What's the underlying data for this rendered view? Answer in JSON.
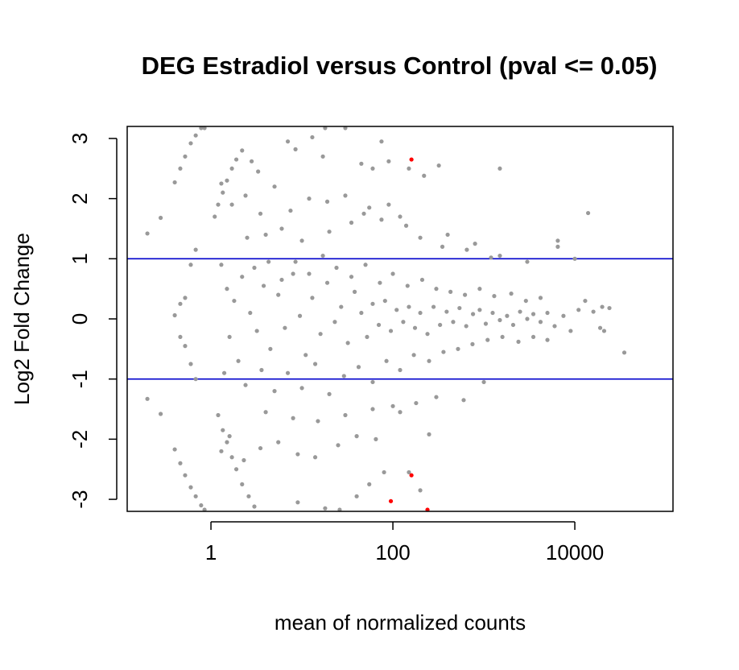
{
  "chart_data": {
    "type": "scatter",
    "title": "DEG Estradiol versus Control  (pval <= 0.05)",
    "xlabel": "mean of normalized counts",
    "ylabel": "Log2 Fold Change",
    "x_scale": "log10",
    "xlim": [
      0.12,
      120000
    ],
    "ylim": [
      -3.2,
      3.2
    ],
    "x_ticks": [
      {
        "value": 1,
        "label": "1"
      },
      {
        "value": 100,
        "label": "100"
      },
      {
        "value": 10000,
        "label": "10000"
      }
    ],
    "y_ticks": [
      {
        "value": 3,
        "label": "3"
      },
      {
        "value": 2,
        "label": "2"
      },
      {
        "value": 1,
        "label": "1"
      },
      {
        "value": 0,
        "label": "0"
      },
      {
        "value": -1,
        "label": "-1"
      },
      {
        "value": -2,
        "label": "-2"
      },
      {
        "value": -3,
        "label": "-3"
      }
    ],
    "reference_lines": [
      {
        "y": 1,
        "color": "#0000cc"
      },
      {
        "y": -1,
        "color": "#0000cc"
      }
    ],
    "grid": false,
    "colors": {
      "non_significant": "#999999",
      "significant": "#ff0000",
      "threshold_line": "#0000cc"
    },
    "series": [
      {
        "status": "not significant",
        "color": "#999999",
        "points": [
          [
            0.2,
            1.42
          ],
          [
            0.2,
            -1.33
          ],
          [
            0.28,
            1.68
          ],
          [
            0.28,
            -1.58
          ],
          [
            0.4,
            2.27
          ],
          [
            0.4,
            0.06
          ],
          [
            0.4,
            -2.17
          ],
          [
            0.46,
            2.5
          ],
          [
            0.46,
            0.25
          ],
          [
            0.46,
            -0.3
          ],
          [
            0.46,
            -2.4
          ],
          [
            0.52,
            2.7
          ],
          [
            0.52,
            0.35
          ],
          [
            0.52,
            -0.45
          ],
          [
            0.52,
            -2.6
          ],
          [
            0.6,
            2.92
          ],
          [
            0.6,
            0.9
          ],
          [
            0.6,
            -0.75
          ],
          [
            0.6,
            -2.8
          ],
          [
            0.68,
            3.05
          ],
          [
            0.68,
            1.15
          ],
          [
            0.68,
            -1.0
          ],
          [
            0.68,
            -2.95
          ],
          [
            0.78,
            3.18
          ],
          [
            0.78,
            -3.1
          ],
          [
            0.85,
            3.25
          ],
          [
            0.85,
            -3.2
          ],
          [
            1.1,
            1.7
          ],
          [
            1.2,
            1.9
          ],
          [
            1.35,
            2.1
          ],
          [
            1.5,
            2.3
          ],
          [
            1.7,
            2.5
          ],
          [
            1.9,
            2.65
          ],
          [
            2.2,
            2.8
          ],
          [
            1.2,
            -1.6
          ],
          [
            1.35,
            -1.85
          ],
          [
            1.5,
            -2.05
          ],
          [
            1.7,
            -2.3
          ],
          [
            1.9,
            -2.5
          ],
          [
            2.2,
            -2.75
          ],
          [
            2.6,
            -2.95
          ],
          [
            3.0,
            -3.12
          ],
          [
            2.8,
            2.62
          ],
          [
            3.3,
            2.45
          ],
          [
            7.0,
            2.95
          ],
          [
            8.5,
            2.82
          ],
          [
            13,
            3.02
          ],
          [
            17,
            2.7
          ],
          [
            18,
            3.2
          ],
          [
            30,
            3.25
          ],
          [
            45,
            2.58
          ],
          [
            60,
            2.5
          ],
          [
            75,
            2.95
          ],
          [
            90,
            2.62
          ],
          [
            150,
            2.5
          ],
          [
            220,
            2.38
          ],
          [
            320,
            2.55
          ],
          [
            1500,
            2.5
          ],
          [
            14000,
            1.76
          ],
          [
            6500,
            1.3
          ],
          [
            6500,
            1.2
          ],
          [
            10000,
            1.0
          ],
          [
            9,
            -3.05
          ],
          [
            18,
            -3.15
          ],
          [
            26,
            -3.2
          ],
          [
            40,
            -2.95
          ],
          [
            55,
            -2.75
          ],
          [
            80,
            -2.55
          ],
          [
            150,
            -2.55
          ],
          [
            200,
            -2.85
          ],
          [
            250,
            -1.92
          ],
          [
            120,
            -1.55
          ],
          [
            60,
            -1.5
          ],
          [
            30,
            -1.6
          ],
          [
            15,
            -1.7
          ],
          [
            8,
            -1.65
          ],
          [
            4,
            -1.55
          ],
          [
            2.5,
            1.35
          ],
          [
            4,
            1.4
          ],
          [
            6,
            1.5
          ],
          [
            10,
            1.3
          ],
          [
            20,
            1.45
          ],
          [
            35,
            1.6
          ],
          [
            55,
            1.85
          ],
          [
            90,
            1.9
          ],
          [
            140,
            1.55
          ],
          [
            400,
            1.4
          ],
          [
            800,
            1.25
          ],
          [
            1500,
            1.05
          ],
          [
            3000,
            0.95
          ],
          [
            1.3,
            0.9
          ],
          [
            1.5,
            0.5
          ],
          [
            1.8,
            0.3
          ],
          [
            2.2,
            0.7
          ],
          [
            2.7,
            0.1
          ],
          [
            3.2,
            -0.2
          ],
          [
            3.8,
            0.55
          ],
          [
            4.5,
            -0.5
          ],
          [
            5.5,
            0.4
          ],
          [
            6.5,
            -0.15
          ],
          [
            8,
            0.75
          ],
          [
            9.5,
            0.05
          ],
          [
            11,
            -0.6
          ],
          [
            13,
            0.35
          ],
          [
            16,
            -0.25
          ],
          [
            19,
            0.6
          ],
          [
            23,
            -0.05
          ],
          [
            27,
            0.2
          ],
          [
            32,
            -0.4
          ],
          [
            38,
            0.45
          ],
          [
            45,
            0.1
          ],
          [
            52,
            -0.3
          ],
          [
            60,
            0.25
          ],
          [
            70,
            -0.1
          ],
          [
            82,
            0.3
          ],
          [
            95,
            -0.2
          ],
          [
            110,
            0.15
          ],
          [
            130,
            -0.05
          ],
          [
            150,
            0.2
          ],
          [
            175,
            -0.15
          ],
          [
            200,
            0.1
          ],
          [
            240,
            -0.25
          ],
          [
            280,
            0.2
          ],
          [
            330,
            -0.1
          ],
          [
            390,
            0.12
          ],
          [
            460,
            -0.05
          ],
          [
            540,
            0.18
          ],
          [
            640,
            -0.12
          ],
          [
            760,
            0.08
          ],
          [
            900,
            0.15
          ],
          [
            1050,
            -0.08
          ],
          [
            1250,
            0.1
          ],
          [
            1500,
            -0.02
          ],
          [
            1800,
            0.05
          ],
          [
            2100,
            -0.1
          ],
          [
            2500,
            0.12
          ],
          [
            3000,
            0.0
          ],
          [
            3500,
            0.08
          ],
          [
            4200,
            -0.05
          ],
          [
            5000,
            0.1
          ],
          [
            6000,
            -0.12
          ],
          [
            7500,
            0.05
          ],
          [
            9000,
            -0.2
          ],
          [
            11000,
            0.15
          ],
          [
            13000,
            0.3
          ],
          [
            16000,
            0.12
          ],
          [
            20000,
            0.2
          ],
          [
            24000,
            0.18
          ],
          [
            35000,
            -0.56
          ],
          [
            19000,
            -0.15
          ],
          [
            21000,
            -0.2
          ],
          [
            1.4,
            -0.9
          ],
          [
            1.6,
            -0.3
          ],
          [
            2,
            -0.7
          ],
          [
            2.4,
            -1.1
          ],
          [
            3,
            0.85
          ],
          [
            3.6,
            -0.85
          ],
          [
            4.3,
            0.95
          ],
          [
            5,
            -1.2
          ],
          [
            6,
            0.65
          ],
          [
            7,
            -0.9
          ],
          [
            8.5,
            0.95
          ],
          [
            10,
            -1.15
          ],
          [
            12,
            0.75
          ],
          [
            14,
            -0.75
          ],
          [
            17,
            1.05
          ],
          [
            20,
            -1.25
          ],
          [
            24,
            0.85
          ],
          [
            29,
            -0.95
          ],
          [
            35,
            0.7
          ],
          [
            42,
            -0.8
          ],
          [
            50,
            0.9
          ],
          [
            60,
            -1.05
          ],
          [
            72,
            0.6
          ],
          [
            85,
            -0.7
          ],
          [
            100,
            0.75
          ],
          [
            120,
            -0.85
          ],
          [
            145,
            0.55
          ],
          [
            170,
            -0.6
          ],
          [
            210,
            0.65
          ],
          [
            250,
            -0.7
          ],
          [
            300,
            0.5
          ],
          [
            360,
            -0.55
          ],
          [
            430,
            0.45
          ],
          [
            520,
            -0.5
          ],
          [
            620,
            0.4
          ],
          [
            750,
            -0.42
          ],
          [
            900,
            0.5
          ],
          [
            1100,
            -0.35
          ],
          [
            1300,
            0.38
          ],
          [
            1600,
            -0.3
          ],
          [
            2000,
            0.42
          ],
          [
            2400,
            -0.38
          ],
          [
            2900,
            0.3
          ],
          [
            3500,
            -0.3
          ],
          [
            4200,
            0.35
          ],
          [
            5000,
            -0.35
          ],
          [
            1.3,
            -2.2
          ],
          [
            1.6,
            -1.95
          ],
          [
            2.3,
            -2.35
          ],
          [
            3.5,
            -2.15
          ],
          [
            5.5,
            -2.05
          ],
          [
            9,
            -2.25
          ],
          [
            14,
            -2.3
          ],
          [
            25,
            -2.1
          ],
          [
            40,
            -1.95
          ],
          [
            65,
            -2.0
          ],
          [
            100,
            -1.45
          ],
          [
            180,
            -1.4
          ],
          [
            300,
            -1.3
          ],
          [
            600,
            -1.35
          ],
          [
            1000,
            -1.05
          ],
          [
            1.3,
            2.25
          ],
          [
            1.7,
            1.9
          ],
          [
            2.4,
            2.05
          ],
          [
            3.5,
            1.75
          ],
          [
            5,
            2.2
          ],
          [
            7.5,
            1.8
          ],
          [
            12,
            2.0
          ],
          [
            19,
            1.95
          ],
          [
            30,
            2.05
          ],
          [
            48,
            1.75
          ],
          [
            75,
            1.65
          ],
          [
            120,
            1.7
          ],
          [
            200,
            1.35
          ],
          [
            350,
            1.2
          ],
          [
            650,
            1.15
          ],
          [
            1200,
            1.02
          ]
        ]
      },
      {
        "status": "significant (pval <= 0.05)",
        "color": "#ff0000",
        "points": [
          [
            160,
            2.65
          ],
          [
            160,
            -2.6
          ],
          [
            95,
            -3.03
          ],
          [
            240,
            -3.2
          ]
        ]
      }
    ]
  }
}
